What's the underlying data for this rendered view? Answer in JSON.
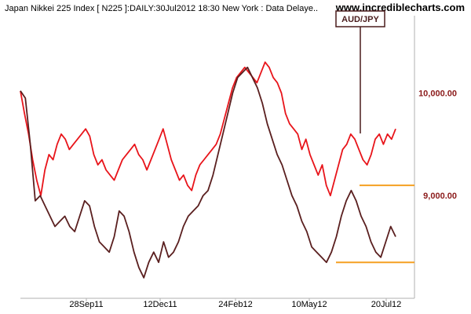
{
  "header": {
    "title": "Japan Nikkei 225 Index [ N225 ]:DAILY:30Jul2012 18:30 New York : Data Delaye..",
    "site": "www.incrediblecharts.com"
  },
  "chart_data": {
    "type": "line",
    "title": "Japan Nikkei 225 Index [ N225 ]:DAILY:30Jul2012 18:30 New York : Data Delaye..",
    "x_ticks": [
      "28Sep11",
      "12Dec11",
      "24Feb12",
      "10May12",
      "20Jul12"
    ],
    "y_ticks": [
      "10,000.00",
      "9,000.00"
    ],
    "ylim": [
      8000,
      10600
    ],
    "series": [
      {
        "name": "",
        "color": "#e8141a",
        "values": [
          10020,
          9800,
          9600,
          9350,
          9150,
          9000,
          9250,
          9400,
          9350,
          9500,
          9600,
          9550,
          9450,
          9500,
          9550,
          9600,
          9650,
          9580,
          9400,
          9300,
          9350,
          9250,
          9200,
          9150,
          9250,
          9350,
          9400,
          9450,
          9500,
          9400,
          9350,
          9250,
          9350,
          9450,
          9550,
          9650,
          9500,
          9350,
          9250,
          9150,
          9200,
          9100,
          9050,
          9200,
          9300,
          9350,
          9400,
          9450,
          9500,
          9600,
          9750,
          9900,
          10050,
          10150,
          10200,
          10250,
          10200,
          10150,
          10100,
          10200,
          10300,
          10250,
          10150,
          10100,
          10000,
          9800,
          9700,
          9650,
          9600,
          9450,
          9550,
          9400,
          9300,
          9200,
          9300,
          9100,
          9000,
          9150,
          9300,
          9450,
          9500,
          9600,
          9550,
          9450,
          9350,
          9300,
          9400,
          9550,
          9600,
          9500,
          9600,
          9550,
          9650
        ]
      },
      {
        "name": "",
        "color": "#5a1f1f",
        "values": [
          10020,
          9950,
          9500,
          8950,
          9000,
          8900,
          8800,
          8700,
          8750,
          8800,
          8700,
          8650,
          8800,
          8950,
          8900,
          8700,
          8550,
          8500,
          8450,
          8600,
          8850,
          8800,
          8650,
          8450,
          8300,
          8200,
          8350,
          8450,
          8350,
          8550,
          8400,
          8450,
          8550,
          8700,
          8800,
          8850,
          8900,
          9000,
          9050,
          9200,
          9400,
          9600,
          9800,
          10000,
          10150,
          10200,
          10250,
          10150,
          10050,
          9900,
          9700,
          9550,
          9400,
          9300,
          9150,
          9000,
          8900,
          8750,
          8650,
          8500,
          8450,
          8400,
          8350,
          8450,
          8600,
          8800,
          8950,
          9050,
          8950,
          8800,
          8700,
          8550,
          8450,
          8400,
          8550,
          8700,
          8600
        ]
      }
    ],
    "legend": [
      "AUD/JPY"
    ]
  },
  "annotations": {
    "upper_level": 9100,
    "lower_level": 8350,
    "color": "#f5a022"
  },
  "legend": {
    "label": "AUD/JPY"
  }
}
